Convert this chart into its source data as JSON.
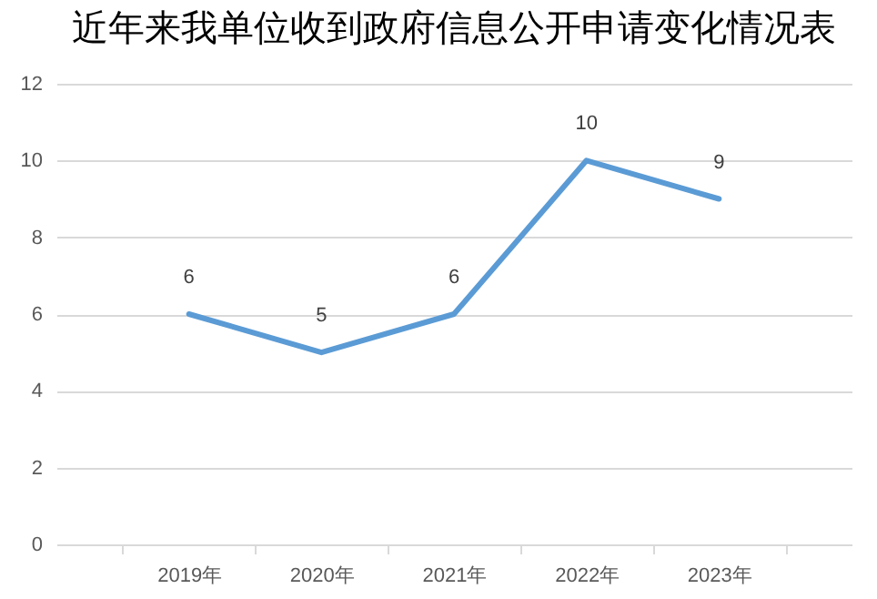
{
  "chart_data": {
    "type": "line",
    "title": "近年来我单位收到政府信息公开申请变化情况表",
    "categories": [
      "2019年",
      "2020年",
      "2021年",
      "2022年",
      "2023年"
    ],
    "series": [
      {
        "color": "#5b9bd5",
        "values": [
          6,
          5,
          6,
          10,
          9
        ]
      }
    ],
    "ylim": [
      0,
      12
    ],
    "yticks": [
      0,
      2,
      4,
      6,
      8,
      10,
      12
    ],
    "grid": "y",
    "legend": false,
    "data_labels": true,
    "marker": "none",
    "line_style": "solid"
  }
}
